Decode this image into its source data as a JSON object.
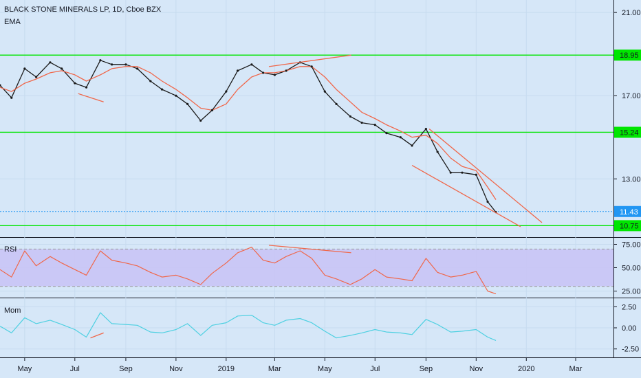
{
  "chart_data": {
    "type": "line",
    "title": "BLACK STONE MINERALS LP, 1D, Cboe BZX",
    "indicator_label": "EMA",
    "x_tick_labels": [
      "May",
      "Jul",
      "Sep",
      "Nov",
      "2019",
      "Mar",
      "May",
      "Jul",
      "Sep",
      "Nov",
      "2020",
      "Mar"
    ],
    "price_panel": {
      "y_ticks": [
        "21.00",
        "17.00",
        "13.00"
      ],
      "ylim": [
        10.2,
        21.6
      ],
      "dates": [
        "2018-04-01",
        "2018-04-15",
        "2018-05-01",
        "2018-05-15",
        "2018-06-01",
        "2018-06-15",
        "2018-07-01",
        "2018-07-15",
        "2018-08-01",
        "2018-08-15",
        "2018-09-01",
        "2018-09-15",
        "2018-10-01",
        "2018-10-15",
        "2018-11-01",
        "2018-11-15",
        "2018-12-01",
        "2018-12-15",
        "2019-01-01",
        "2019-01-15",
        "2019-02-01",
        "2019-02-15",
        "2019-03-01",
        "2019-03-15",
        "2019-04-01",
        "2019-04-15",
        "2019-05-01",
        "2019-05-15",
        "2019-06-01",
        "2019-06-15",
        "2019-07-01",
        "2019-07-15",
        "2019-08-01",
        "2019-08-15",
        "2019-09-01",
        "2019-09-15",
        "2019-10-01",
        "2019-10-15",
        "2019-11-01",
        "2019-11-15",
        "2019-11-25"
      ],
      "series": [
        {
          "values": [
            17.5,
            16.9,
            18.3,
            17.9,
            18.6,
            18.3,
            17.6,
            17.4,
            18.7,
            18.5,
            18.5,
            18.3,
            17.7,
            17.3,
            17.0,
            16.6,
            15.8,
            16.3,
            17.2,
            18.2,
            18.5,
            18.1,
            18.0,
            18.2,
            18.6,
            18.4,
            17.2,
            16.6,
            16.0,
            15.7,
            15.6,
            15.2,
            15.0,
            14.6,
            15.4,
            14.3,
            13.3,
            13.3,
            13.2,
            11.9,
            11.4
          ],
          "color": "#1a1a1a"
        },
        {
          "values": [
            17.4,
            17.2,
            17.6,
            17.8,
            18.1,
            18.2,
            18.0,
            17.7,
            18.0,
            18.3,
            18.4,
            18.4,
            18.1,
            17.7,
            17.3,
            16.9,
            16.4,
            16.3,
            16.6,
            17.3,
            17.9,
            18.1,
            18.1,
            18.2,
            18.4,
            18.4,
            17.9,
            17.3,
            16.7,
            16.2,
            15.9,
            15.6,
            15.3,
            15.0,
            15.1,
            14.7,
            14.0,
            13.6,
            13.4,
            12.6,
            12.0
          ],
          "color": "#f0674a"
        }
      ],
      "horizontal_levels": [
        {
          "value": 18.95,
          "label": "18.95",
          "color": "#00e600"
        },
        {
          "value": 15.24,
          "label": "15.24",
          "color": "#00e600"
        },
        {
          "value": 10.75,
          "label": "10.75",
          "color": "#00e600"
        },
        {
          "value": 11.43,
          "label": "11.43",
          "color": "#2196f3",
          "style": "dotted"
        }
      ],
      "trendlines": [
        {
          "from": [
            "2018-07-05",
            17.1
          ],
          "to": [
            "2018-08-05",
            16.7
          ]
        },
        {
          "from": [
            "2019-02-22",
            18.4
          ],
          "to": [
            "2019-06-02",
            18.95
          ]
        },
        {
          "from": [
            "2019-09-05",
            15.4
          ],
          "to": [
            "2020-01-20",
            10.9
          ]
        },
        {
          "from": [
            "2019-08-15",
            13.65
          ],
          "to": [
            "2019-12-25",
            10.7
          ]
        }
      ]
    },
    "rsi_panel": {
      "label": "RSI",
      "y_ticks": [
        "75.00",
        "50.00",
        "25.00"
      ],
      "ylim": [
        18,
        82
      ],
      "band": [
        30,
        70
      ],
      "dates": [
        "2018-04-01",
        "2018-04-15",
        "2018-05-01",
        "2018-05-15",
        "2018-06-01",
        "2018-06-15",
        "2018-07-01",
        "2018-07-15",
        "2018-08-01",
        "2018-08-15",
        "2018-09-01",
        "2018-09-15",
        "2018-10-01",
        "2018-10-15",
        "2018-11-01",
        "2018-11-15",
        "2018-12-01",
        "2018-12-15",
        "2019-01-01",
        "2019-01-15",
        "2019-02-01",
        "2019-02-15",
        "2019-03-01",
        "2019-03-15",
        "2019-04-01",
        "2019-04-15",
        "2019-05-01",
        "2019-05-15",
        "2019-06-01",
        "2019-06-15",
        "2019-07-01",
        "2019-07-15",
        "2019-08-01",
        "2019-08-15",
        "2019-09-01",
        "2019-09-15",
        "2019-10-01",
        "2019-10-15",
        "2019-11-01",
        "2019-11-15",
        "2019-11-25"
      ],
      "values": [
        48,
        40,
        68,
        52,
        62,
        55,
        48,
        42,
        68,
        58,
        55,
        52,
        45,
        40,
        42,
        38,
        32,
        44,
        55,
        66,
        72,
        58,
        55,
        62,
        68,
        60,
        42,
        38,
        32,
        38,
        48,
        40,
        38,
        36,
        60,
        45,
        40,
        42,
        46,
        25,
        22
      ],
      "color": "#f0674a",
      "trendline": {
        "from": [
          "2019-02-22",
          74
        ],
        "to": [
          "2019-06-02",
          66
        ]
      }
    },
    "mom_panel": {
      "label": "Mom",
      "y_ticks": [
        "2.50",
        "0.00",
        "-2.50"
      ],
      "ylim": [
        -3.5,
        3.5
      ],
      "dates": [
        "2018-04-01",
        "2018-04-15",
        "2018-05-01",
        "2018-05-15",
        "2018-06-01",
        "2018-06-15",
        "2018-07-01",
        "2018-07-15",
        "2018-08-01",
        "2018-08-15",
        "2018-09-01",
        "2018-09-15",
        "2018-10-01",
        "2018-10-15",
        "2018-11-01",
        "2018-11-15",
        "2018-12-01",
        "2018-12-15",
        "2019-01-01",
        "2019-01-15",
        "2019-02-01",
        "2019-02-15",
        "2019-03-01",
        "2019-03-15",
        "2019-04-01",
        "2019-04-15",
        "2019-05-01",
        "2019-05-15",
        "2019-06-01",
        "2019-06-15",
        "2019-07-01",
        "2019-07-15",
        "2019-08-01",
        "2019-08-15",
        "2019-09-01",
        "2019-09-15",
        "2019-10-01",
        "2019-10-15",
        "2019-11-01",
        "2019-11-15",
        "2019-11-25"
      ],
      "values": [
        0.2,
        -0.6,
        1.2,
        0.5,
        0.9,
        0.4,
        -0.2,
        -1.1,
        1.8,
        0.5,
        0.4,
        0.3,
        -0.5,
        -0.6,
        -0.2,
        0.5,
        -0.9,
        0.3,
        0.6,
        1.4,
        1.5,
        0.6,
        0.3,
        0.9,
        1.1,
        0.6,
        -0.4,
        -1.2,
        -0.9,
        -0.6,
        -0.2,
        -0.5,
        -0.6,
        -0.8,
        1.0,
        0.4,
        -0.5,
        -0.4,
        -0.2,
        -1.1,
        -1.5
      ],
      "color": "#4dd0e1",
      "trendline": {
        "from": [
          "2018-07-20",
          -1.2
        ],
        "to": [
          "2018-08-05",
          -0.6
        ]
      }
    }
  }
}
